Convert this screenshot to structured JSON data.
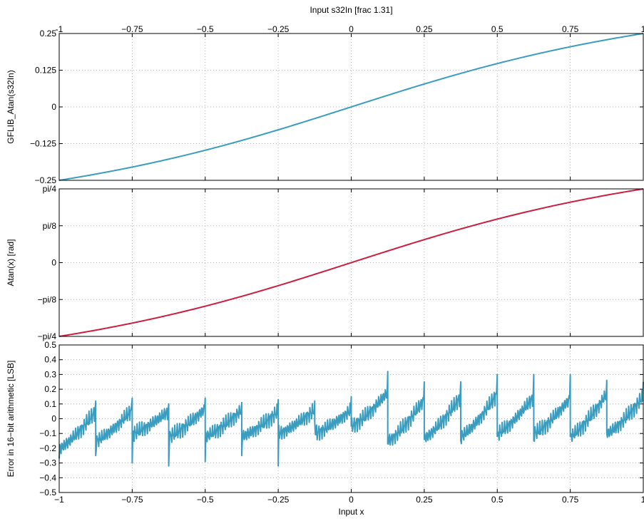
{
  "chart_data": [
    {
      "type": "line",
      "title": "",
      "top_xlabel": "Input s32In [frac 1.31]",
      "ylabel": "GFLIB_Atan(s32In)",
      "xlim": [
        -1,
        1
      ],
      "ylim": [
        -0.25,
        0.25
      ],
      "x_ticks": [
        -1,
        -0.75,
        -0.5,
        -0.25,
        0,
        0.25,
        0.5,
        0.75,
        1
      ],
      "x_tick_labels": [
        "-1",
        "−0.75",
        "−0.5",
        "−0.25",
        "0",
        "0.25",
        "0.5",
        "0.75",
        "1"
      ],
      "y_ticks": [
        -0.25,
        -0.125,
        0,
        0.125,
        0.25
      ],
      "y_tick_labels": [
        "−0.25",
        "−0.125",
        "0",
        "0.125",
        "0.25"
      ],
      "grid": true,
      "series": [
        {
          "color": "#3a9dbf",
          "function": "atan(x)/pi",
          "x": [
            -1,
            -0.875,
            -0.75,
            -0.625,
            -0.5,
            -0.375,
            -0.25,
            -0.125,
            0,
            0.125,
            0.25,
            0.375,
            0.5,
            0.625,
            0.75,
            0.875,
            1
          ],
          "values": [
            -0.25,
            -0.2283,
            -0.2048,
            -0.1796,
            -0.1476,
            -0.114,
            -0.078,
            -0.0396,
            0,
            0.0396,
            0.078,
            0.114,
            0.1476,
            0.1796,
            0.2048,
            0.2283,
            0.25
          ]
        }
      ]
    },
    {
      "type": "line",
      "title": "",
      "ylabel": "Atan(x) [rad]",
      "xlim": [
        -1,
        1
      ],
      "ylim": [
        -0.7854,
        0.7854
      ],
      "x_ticks": [
        -1,
        -0.75,
        -0.5,
        -0.25,
        0,
        0.25,
        0.5,
        0.75,
        1
      ],
      "y_ticks": [
        -0.7854,
        -0.3927,
        0,
        0.3927,
        0.7854
      ],
      "y_tick_labels": [
        "−pi/4",
        "−pi/8",
        "0",
        "pi/8",
        "pi/4"
      ],
      "grid": true,
      "series": [
        {
          "color": "#cc1f3d",
          "function": "atan(x)",
          "x": [
            -1,
            -0.75,
            -0.5,
            -0.25,
            0,
            0.25,
            0.5,
            0.75,
            1
          ],
          "values": [
            -0.7854,
            -0.6435,
            -0.4636,
            -0.245,
            0,
            0.245,
            0.4636,
            0.6435,
            0.7854
          ]
        }
      ]
    },
    {
      "type": "line",
      "title": "",
      "xlabel": "Input x",
      "ylabel": "Error in 16−bit arithmetic [LSB]",
      "xlim": [
        -1,
        1
      ],
      "ylim": [
        -0.5,
        0.5
      ],
      "x_ticks": [
        -1,
        -0.75,
        -0.5,
        -0.25,
        0,
        0.25,
        0.5,
        0.75,
        1
      ],
      "x_tick_labels": [
        "−1",
        "−0.75",
        "−0.5",
        "−0.25",
        "0",
        "0.25",
        "0.5",
        "0.75",
        "1"
      ],
      "y_ticks": [
        -0.5,
        -0.4,
        -0.3,
        -0.2,
        -0.1,
        0,
        0.1,
        0.2,
        0.3,
        0.4,
        0.5
      ],
      "y_tick_labels": [
        "−0.5",
        "−0.4",
        "−0.3",
        "−0.2",
        "−0.1",
        "0",
        "0.1",
        "0.2",
        "0.3",
        "0.4",
        "0.5"
      ],
      "grid": true,
      "series": [
        {
          "color": "#3a9dbf",
          "description": "sawtooth error with jumps every 0.125; approximate segment endpoints",
          "segments": [
            {
              "x_start": -1.0,
              "y_start": -0.2,
              "x_end": -0.875,
              "y_end": 0.05,
              "spike_high": 0.12,
              "spike_low": -0.27
            },
            {
              "x_start": -0.875,
              "y_start": -0.15,
              "x_end": -0.75,
              "y_end": 0.06,
              "spike_high": 0.14,
              "spike_low": -0.25
            },
            {
              "x_start": -0.75,
              "y_start": -0.1,
              "x_end": -0.625,
              "y_end": 0.05,
              "spike_high": 0.1,
              "spike_low": -0.3
            },
            {
              "x_start": -0.625,
              "y_start": -0.12,
              "x_end": -0.5,
              "y_end": 0.07,
              "spike_high": 0.14,
              "spike_low": -0.32
            },
            {
              "x_start": -0.5,
              "y_start": -0.12,
              "x_end": -0.375,
              "y_end": 0.06,
              "spike_high": 0.11,
              "spike_low": -0.29
            },
            {
              "x_start": -0.375,
              "y_start": -0.12,
              "x_end": -0.25,
              "y_end": 0.05,
              "spike_high": 0.13,
              "spike_low": -0.25
            },
            {
              "x_start": -0.25,
              "y_start": -0.1,
              "x_end": -0.125,
              "y_end": 0.06,
              "spike_high": 0.12,
              "spike_low": -0.32
            },
            {
              "x_start": -0.125,
              "y_start": -0.1,
              "x_end": 0.0,
              "y_end": 0.06,
              "spike_high": 0.15,
              "spike_low": -0.02
            },
            {
              "x_start": 0.0,
              "y_start": -0.05,
              "x_end": 0.125,
              "y_end": 0.18,
              "spike_high": 0.32,
              "spike_low": -0.05
            },
            {
              "x_start": 0.125,
              "y_start": -0.15,
              "x_end": 0.25,
              "y_end": 0.13,
              "spike_high": 0.25,
              "spike_low": -0.17
            },
            {
              "x_start": 0.25,
              "y_start": -0.13,
              "x_end": 0.375,
              "y_end": 0.15,
              "spike_high": 0.25,
              "spike_low": -0.14
            },
            {
              "x_start": 0.375,
              "y_start": -0.12,
              "x_end": 0.5,
              "y_end": 0.17,
              "spike_high": 0.3,
              "spike_low": -0.15
            },
            {
              "x_start": 0.5,
              "y_start": -0.1,
              "x_end": 0.625,
              "y_end": 0.15,
              "spike_high": 0.3,
              "spike_low": -0.12
            },
            {
              "x_start": 0.625,
              "y_start": -0.1,
              "x_end": 0.75,
              "y_end": 0.14,
              "spike_high": 0.3,
              "spike_low": -0.15
            },
            {
              "x_start": 0.75,
              "y_start": -0.12,
              "x_end": 0.875,
              "y_end": 0.17,
              "spike_high": 0.26,
              "spike_low": -0.12
            },
            {
              "x_start": 0.875,
              "y_start": -0.1,
              "x_end": 1.0,
              "y_end": 0.15,
              "spike_high": 0.25,
              "spike_low": -0.1
            }
          ]
        }
      ]
    }
  ]
}
